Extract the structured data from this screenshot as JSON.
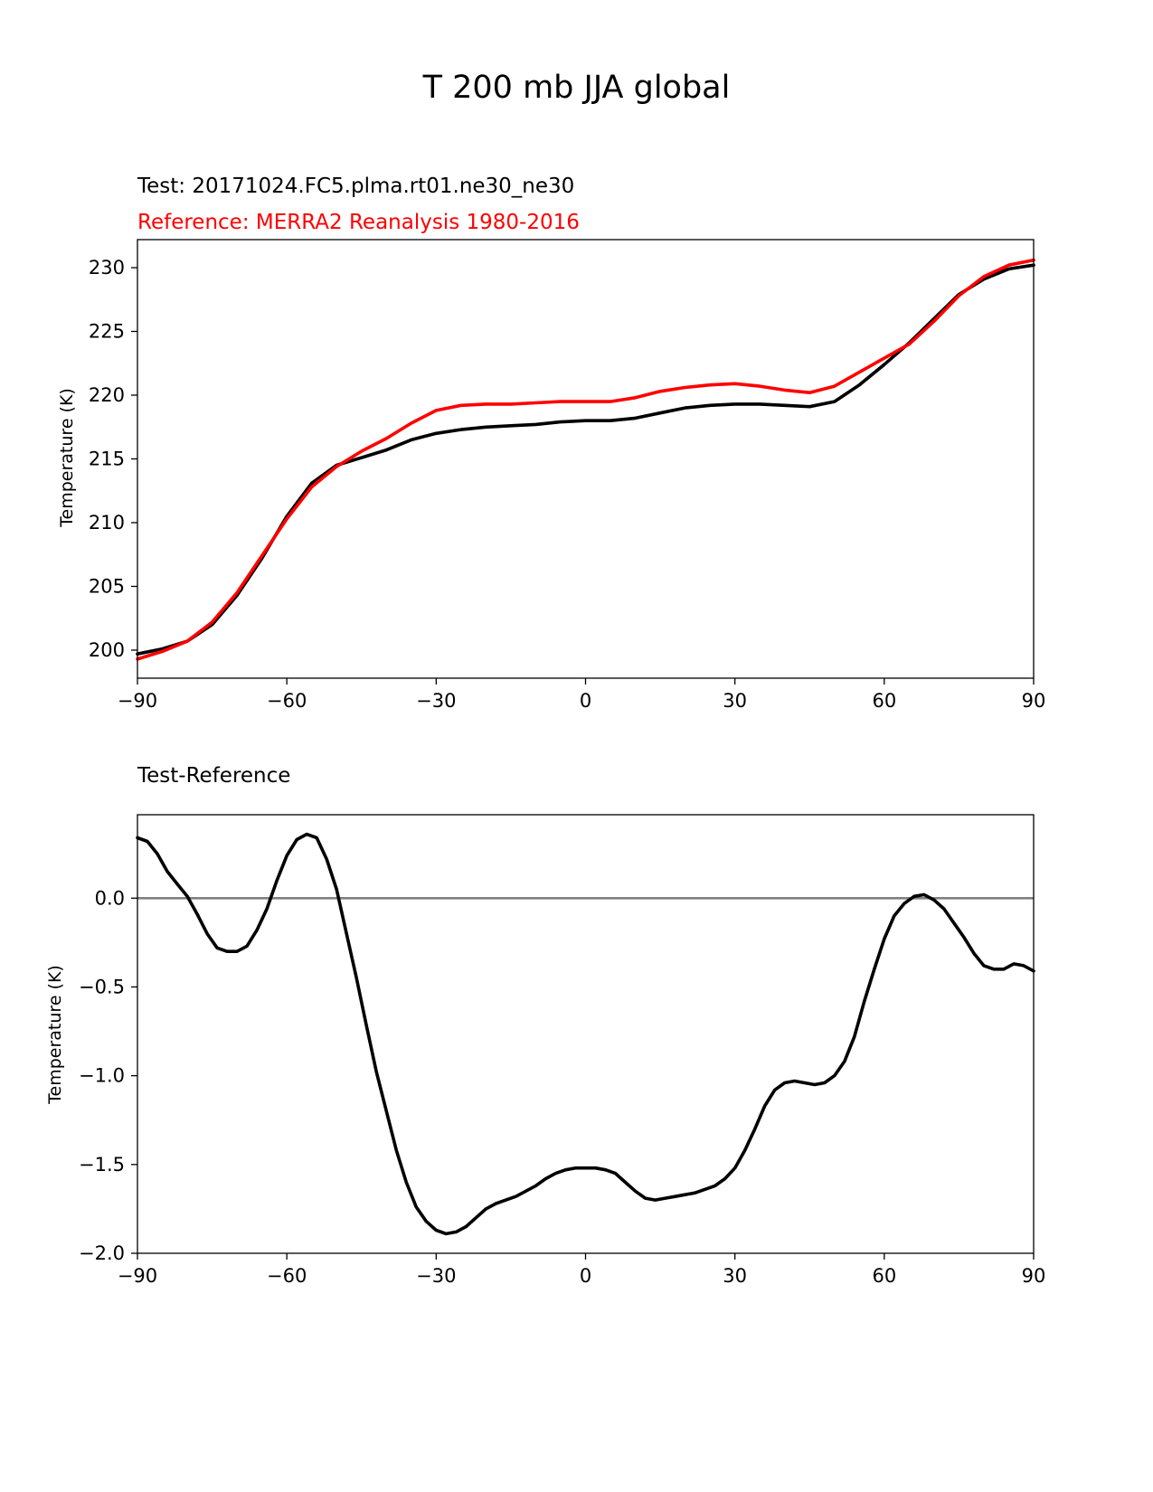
{
  "figure": {
    "title": "T 200 mb JJA global"
  },
  "chart_data": [
    {
      "type": "line",
      "title_test": "Test: 20171024.FC5.plma.rt01.ne30_ne30",
      "title_reference": "Reference: MERRA2 Reanalysis 1980-2016",
      "xlabel": "",
      "ylabel": "Temperature (K)",
      "xlim": [
        -90,
        90
      ],
      "ylim": [
        197.8,
        232.2
      ],
      "xticks": [
        -90,
        -60,
        -30,
        0,
        30,
        60,
        90
      ],
      "xtick_labels": [
        "−90",
        "−60",
        "−30",
        "0",
        "30",
        "60",
        "90"
      ],
      "yticks": [
        200,
        205,
        210,
        215,
        220,
        225,
        230
      ],
      "ytick_labels": [
        "200",
        "205",
        "210",
        "215",
        "220",
        "225",
        "230"
      ],
      "x": [
        -90,
        -85,
        -80,
        -75,
        -70,
        -65,
        -60,
        -55,
        -50,
        -45,
        -40,
        -35,
        -30,
        -25,
        -20,
        -15,
        -10,
        -5,
        0,
        5,
        10,
        15,
        20,
        25,
        30,
        35,
        40,
        45,
        50,
        55,
        60,
        65,
        70,
        75,
        80,
        85,
        90
      ],
      "series": [
        {
          "name": "Test",
          "color": "#000000",
          "values": [
            199.7,
            200.1,
            200.7,
            202.0,
            204.3,
            207.2,
            210.5,
            213.1,
            214.5,
            215.1,
            215.7,
            216.5,
            217.0,
            217.3,
            217.5,
            217.6,
            217.7,
            217.9,
            218.0,
            218.0,
            218.2,
            218.6,
            219.0,
            219.2,
            219.3,
            219.3,
            219.2,
            219.1,
            219.5,
            220.8,
            222.4,
            224.1,
            226.0,
            227.9,
            229.1,
            229.9,
            230.2
          ]
        },
        {
          "name": "Reference",
          "color": "#ff0000",
          "values": [
            199.3,
            199.9,
            200.7,
            202.2,
            204.5,
            207.4,
            210.3,
            212.8,
            214.4,
            215.6,
            216.6,
            217.8,
            218.8,
            219.2,
            219.3,
            219.3,
            219.4,
            219.5,
            219.5,
            219.5,
            219.8,
            220.3,
            220.6,
            220.8,
            220.9,
            220.7,
            220.4,
            220.2,
            220.7,
            221.8,
            222.9,
            224.0,
            225.8,
            227.8,
            229.3,
            230.2,
            230.6
          ]
        }
      ]
    },
    {
      "type": "line",
      "title": "Test-Reference",
      "xlabel": "",
      "ylabel": "Temperature (K)",
      "xlim": [
        -90,
        90
      ],
      "ylim": [
        -2.0,
        0.47
      ],
      "xticks": [
        -90,
        -60,
        -30,
        0,
        30,
        60,
        90
      ],
      "xtick_labels": [
        "−90",
        "−60",
        "−30",
        "0",
        "30",
        "60",
        "90"
      ],
      "yticks": [
        -2.0,
        -1.5,
        -1.0,
        -0.5,
        0.0
      ],
      "ytick_labels": [
        "−2.0",
        "−1.5",
        "−1.0",
        "−0.5",
        "0.0"
      ],
      "zero_line": {
        "value": 0,
        "color": "#808080"
      },
      "x": [
        -90,
        -88,
        -86,
        -84,
        -82,
        -80,
        -78,
        -76,
        -74,
        -72,
        -70,
        -68,
        -66,
        -64,
        -62,
        -60,
        -58,
        -56,
        -54,
        -52,
        -50,
        -48,
        -46,
        -44,
        -42,
        -40,
        -38,
        -36,
        -34,
        -32,
        -30,
        -28,
        -26,
        -24,
        -22,
        -20,
        -18,
        -16,
        -14,
        -12,
        -10,
        -8,
        -6,
        -4,
        -2,
        0,
        2,
        4,
        6,
        8,
        10,
        12,
        14,
        16,
        18,
        20,
        22,
        24,
        26,
        28,
        30,
        32,
        34,
        36,
        38,
        40,
        42,
        44,
        46,
        48,
        50,
        52,
        54,
        56,
        58,
        60,
        62,
        64,
        66,
        68,
        70,
        72,
        74,
        76,
        78,
        80,
        82,
        84,
        86,
        88,
        90
      ],
      "series": [
        {
          "name": "Test-Reference",
          "color": "#000000",
          "values": [
            0.34,
            0.32,
            0.25,
            0.15,
            0.08,
            0.01,
            -0.09,
            -0.2,
            -0.28,
            -0.3,
            -0.3,
            -0.27,
            -0.18,
            -0.06,
            0.1,
            0.24,
            0.33,
            0.36,
            0.34,
            0.22,
            0.05,
            -0.2,
            -0.45,
            -0.72,
            -0.98,
            -1.2,
            -1.42,
            -1.6,
            -1.74,
            -1.82,
            -1.87,
            -1.89,
            -1.88,
            -1.85,
            -1.8,
            -1.75,
            -1.72,
            -1.7,
            -1.68,
            -1.65,
            -1.62,
            -1.58,
            -1.55,
            -1.53,
            -1.52,
            -1.52,
            -1.52,
            -1.53,
            -1.55,
            -1.6,
            -1.65,
            -1.69,
            -1.7,
            -1.69,
            -1.68,
            -1.67,
            -1.66,
            -1.64,
            -1.62,
            -1.58,
            -1.52,
            -1.42,
            -1.3,
            -1.17,
            -1.08,
            -1.04,
            -1.03,
            -1.04,
            -1.05,
            -1.04,
            -1.0,
            -0.92,
            -0.78,
            -0.58,
            -0.4,
            -0.23,
            -0.1,
            -0.03,
            0.01,
            0.02,
            -0.01,
            -0.06,
            -0.14,
            -0.22,
            -0.31,
            -0.38,
            -0.4,
            -0.4,
            -0.37,
            -0.38,
            -0.41
          ]
        }
      ]
    }
  ]
}
